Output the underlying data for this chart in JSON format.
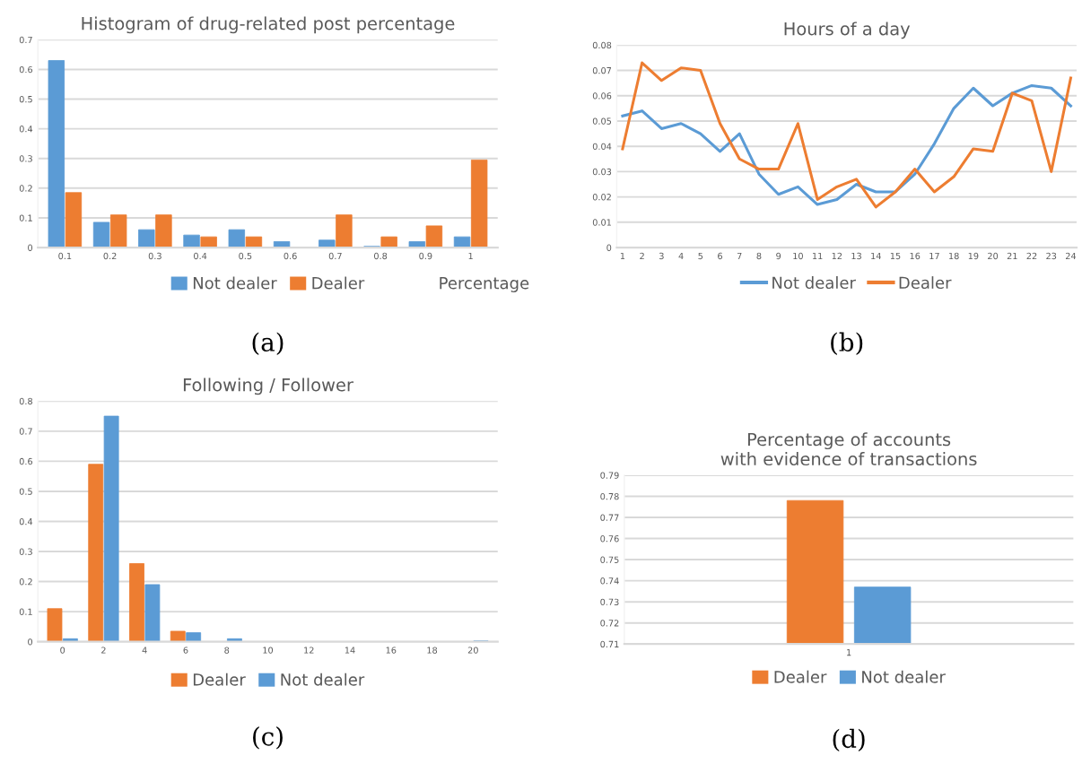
{
  "chart_data": [
    {
      "type": "bar",
      "title": "Histogram of drug-related post percentage",
      "xlabel": "Percentage",
      "categories": [
        "0.1",
        "0.2",
        "0.3",
        "0.4",
        "0.5",
        "0.6",
        "0.7",
        "0.8",
        "0.9",
        "1"
      ],
      "series": [
        {
          "name": "Not dealer",
          "color": "#5b9bd5",
          "values": [
            0.63,
            0.085,
            0.06,
            0.042,
            0.06,
            0.02,
            0.025,
            0.004,
            0.02,
            0.036
          ]
        },
        {
          "name": "Dealer",
          "color": "#ed7d31",
          "values": [
            0.185,
            0.11,
            0.11,
            0.036,
            0.036,
            0,
            0.11,
            0.036,
            0.073,
            0.295
          ]
        }
      ],
      "ylim": [
        0,
        0.7
      ],
      "yticks": [
        0,
        0.1,
        0.2,
        0.3,
        0.4,
        0.5,
        0.6,
        0.7
      ],
      "grid": "y",
      "legend": "bottom",
      "annotations": [
        "(a)"
      ]
    },
    {
      "type": "line",
      "title": "Hours of a day",
      "categories": [
        "1",
        "2",
        "3",
        "4",
        "5",
        "6",
        "7",
        "8",
        "9",
        "10",
        "11",
        "12",
        "13",
        "14",
        "15",
        "16",
        "17",
        "18",
        "19",
        "20",
        "21",
        "22",
        "23",
        "24"
      ],
      "series": [
        {
          "name": "Not dealer",
          "color": "#5b9bd5",
          "values": [
            0.052,
            0.054,
            0.047,
            0.049,
            0.045,
            0.038,
            0.045,
            0.029,
            0.021,
            0.024,
            0.017,
            0.019,
            0.025,
            0.022,
            0.022,
            0.029,
            0.041,
            0.055,
            0.063,
            0.056,
            0.061,
            0.064,
            0.063,
            0.056
          ]
        },
        {
          "name": "Dealer",
          "color": "#ed7d31",
          "values": [
            0.039,
            0.073,
            0.066,
            0.071,
            0.07,
            0.049,
            0.035,
            0.031,
            0.031,
            0.049,
            0.019,
            0.024,
            0.027,
            0.016,
            0.022,
            0.031,
            0.022,
            0.028,
            0.039,
            0.038,
            0.061,
            0.058,
            0.03,
            0.067
          ]
        }
      ],
      "ylim": [
        0,
        0.08
      ],
      "yticks": [
        0,
        0.01,
        0.02,
        0.03,
        0.04,
        0.05,
        0.06,
        0.07,
        0.08
      ],
      "grid": "y",
      "legend": "bottom",
      "marker": "none",
      "line_style": "solid",
      "annotations": [
        "(b)"
      ]
    },
    {
      "type": "bar",
      "title": "Following / Follower",
      "categories": [
        "0",
        "2",
        "4",
        "6",
        "8",
        "10",
        "12",
        "14",
        "16",
        "18",
        "20"
      ],
      "series": [
        {
          "name": "Dealer",
          "color": "#ed7d31",
          "values": [
            0.11,
            0.59,
            0.26,
            0.035,
            0,
            0,
            0,
            0,
            0,
            0,
            0
          ]
        },
        {
          "name": "Not dealer",
          "color": "#5b9bd5",
          "values": [
            0.01,
            0.75,
            0.19,
            0.03,
            0.01,
            0,
            0,
            0,
            0,
            0,
            0.003
          ]
        }
      ],
      "ylim": [
        0,
        0.8
      ],
      "yticks": [
        0,
        0.1,
        0.2,
        0.3,
        0.4,
        0.5,
        0.6,
        0.7,
        0.8
      ],
      "grid": "y",
      "legend": "bottom",
      "annotations": [
        "(c)"
      ]
    },
    {
      "type": "bar",
      "title": "Percentage of accounts\nwith evidence of transactions",
      "categories": [
        "1"
      ],
      "series": [
        {
          "name": "Dealer",
          "color": "#ed7d31",
          "values": [
            0.778
          ]
        },
        {
          "name": "Not dealer",
          "color": "#5b9bd5",
          "values": [
            0.737
          ]
        }
      ],
      "ylim": [
        0.71,
        0.79
      ],
      "yticks": [
        0.71,
        0.72,
        0.73,
        0.74,
        0.75,
        0.76,
        0.77,
        0.78,
        0.79
      ],
      "grid": "y",
      "legend": "bottom",
      "annotations": [
        "(d)"
      ]
    }
  ]
}
